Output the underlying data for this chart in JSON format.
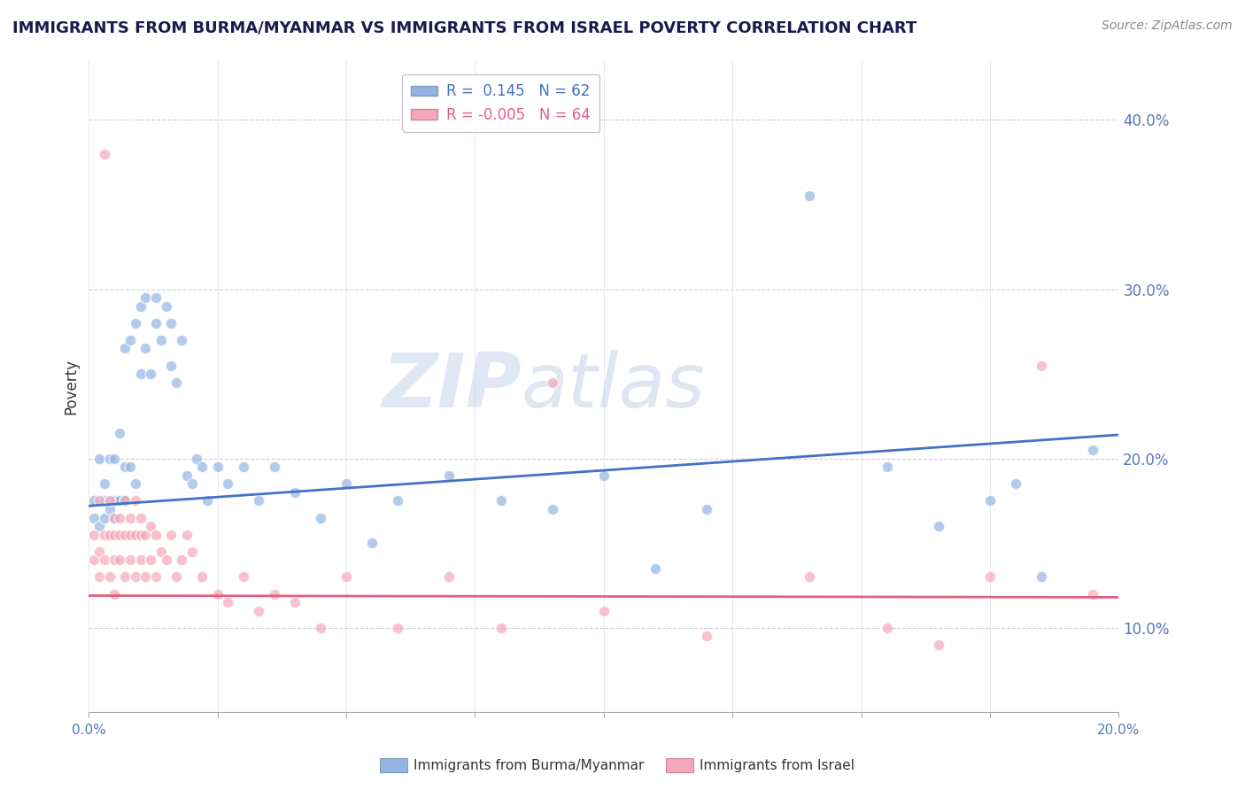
{
  "title": "IMMIGRANTS FROM BURMA/MYANMAR VS IMMIGRANTS FROM ISRAEL POVERTY CORRELATION CHART",
  "source": "Source: ZipAtlas.com",
  "ylabel": "Poverty",
  "xlim": [
    0.0,
    0.2
  ],
  "ylim": [
    0.05,
    0.435
  ],
  "yticks": [
    0.1,
    0.2,
    0.3,
    0.4
  ],
  "ytick_labels": [
    "10.0%",
    "20.0%",
    "30.0%",
    "40.0%"
  ],
  "xticks": [
    0.0,
    0.025,
    0.05,
    0.075,
    0.1,
    0.125,
    0.15,
    0.175,
    0.2
  ],
  "blue_R": 0.145,
  "blue_N": 62,
  "pink_R": -0.005,
  "pink_N": 64,
  "blue_color": "#92b4e3",
  "pink_color": "#f4a7b9",
  "blue_line_color": "#4472c4",
  "pink_line_color": "#e06080",
  "legend_label_blue": "Immigrants from Burma/Myanmar",
  "legend_label_pink": "Immigrants from Israel",
  "watermark_zip": "ZIP",
  "watermark_atlas": "atlas",
  "blue_intercept": 0.172,
  "blue_slope": 0.21,
  "pink_intercept": 0.119,
  "pink_slope": -0.005,
  "blue_scatter_x": [
    0.001,
    0.001,
    0.002,
    0.002,
    0.003,
    0.003,
    0.003,
    0.004,
    0.004,
    0.005,
    0.005,
    0.005,
    0.006,
    0.006,
    0.007,
    0.007,
    0.007,
    0.008,
    0.008,
    0.009,
    0.009,
    0.01,
    0.01,
    0.011,
    0.011,
    0.012,
    0.013,
    0.013,
    0.014,
    0.015,
    0.016,
    0.016,
    0.017,
    0.018,
    0.019,
    0.02,
    0.021,
    0.022,
    0.023,
    0.025,
    0.027,
    0.03,
    0.033,
    0.036,
    0.04,
    0.045,
    0.05,
    0.055,
    0.06,
    0.07,
    0.08,
    0.09,
    0.1,
    0.11,
    0.12,
    0.14,
    0.155,
    0.165,
    0.175,
    0.18,
    0.185,
    0.195
  ],
  "blue_scatter_y": [
    0.165,
    0.175,
    0.16,
    0.2,
    0.165,
    0.175,
    0.185,
    0.17,
    0.2,
    0.165,
    0.175,
    0.2,
    0.175,
    0.215,
    0.175,
    0.195,
    0.265,
    0.195,
    0.27,
    0.185,
    0.28,
    0.25,
    0.29,
    0.265,
    0.295,
    0.25,
    0.28,
    0.295,
    0.27,
    0.29,
    0.255,
    0.28,
    0.245,
    0.27,
    0.19,
    0.185,
    0.2,
    0.195,
    0.175,
    0.195,
    0.185,
    0.195,
    0.175,
    0.195,
    0.18,
    0.165,
    0.185,
    0.15,
    0.175,
    0.19,
    0.175,
    0.17,
    0.19,
    0.135,
    0.17,
    0.355,
    0.195,
    0.16,
    0.175,
    0.185,
    0.13,
    0.205
  ],
  "pink_scatter_x": [
    0.001,
    0.001,
    0.002,
    0.002,
    0.002,
    0.003,
    0.003,
    0.003,
    0.004,
    0.004,
    0.004,
    0.005,
    0.005,
    0.005,
    0.005,
    0.006,
    0.006,
    0.006,
    0.007,
    0.007,
    0.007,
    0.008,
    0.008,
    0.008,
    0.009,
    0.009,
    0.009,
    0.01,
    0.01,
    0.01,
    0.011,
    0.011,
    0.012,
    0.012,
    0.013,
    0.013,
    0.014,
    0.015,
    0.016,
    0.017,
    0.018,
    0.019,
    0.02,
    0.022,
    0.025,
    0.027,
    0.03,
    0.033,
    0.036,
    0.04,
    0.045,
    0.05,
    0.06,
    0.07,
    0.08,
    0.09,
    0.1,
    0.12,
    0.14,
    0.155,
    0.165,
    0.175,
    0.185,
    0.195
  ],
  "pink_scatter_y": [
    0.14,
    0.155,
    0.13,
    0.145,
    0.175,
    0.14,
    0.155,
    0.38,
    0.13,
    0.155,
    0.175,
    0.14,
    0.155,
    0.165,
    0.12,
    0.14,
    0.155,
    0.165,
    0.13,
    0.155,
    0.175,
    0.14,
    0.155,
    0.165,
    0.13,
    0.155,
    0.175,
    0.14,
    0.155,
    0.165,
    0.13,
    0.155,
    0.14,
    0.16,
    0.13,
    0.155,
    0.145,
    0.14,
    0.155,
    0.13,
    0.14,
    0.155,
    0.145,
    0.13,
    0.12,
    0.115,
    0.13,
    0.11,
    0.12,
    0.115,
    0.1,
    0.13,
    0.1,
    0.13,
    0.1,
    0.245,
    0.11,
    0.095,
    0.13,
    0.1,
    0.09,
    0.13,
    0.255,
    0.12
  ]
}
